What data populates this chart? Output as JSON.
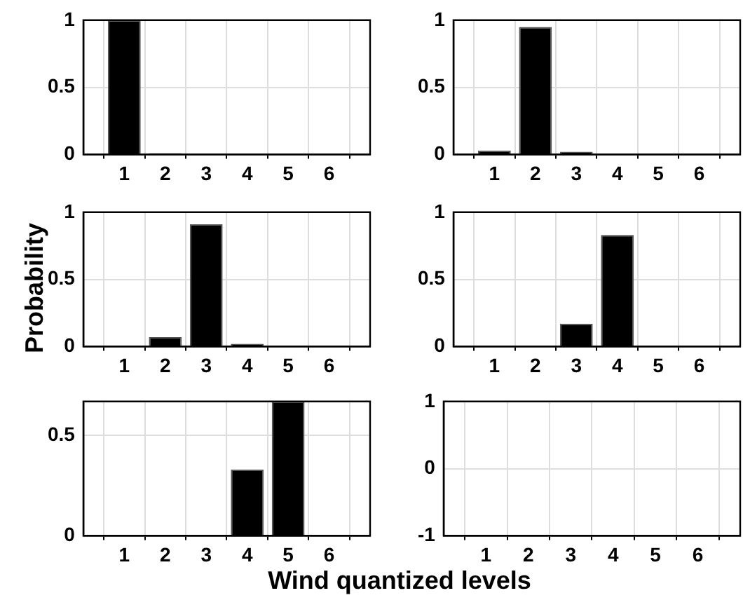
{
  "chart_data": [
    {
      "type": "bar",
      "x": [
        1,
        2,
        3,
        4,
        5,
        6
      ],
      "values": [
        1,
        0.01,
        0,
        0,
        0,
        0
      ],
      "color": "#000000",
      "xlim": [
        0,
        7
      ],
      "xticks": [
        1,
        2,
        3,
        4,
        5,
        6
      ],
      "ylim": [
        0,
        1
      ],
      "yticks": [
        0,
        0.5,
        1
      ],
      "grid": true
    },
    {
      "type": "bar",
      "x": [
        1,
        2,
        3,
        4,
        5,
        6
      ],
      "values": [
        0.03,
        0.95,
        0.02,
        0,
        0,
        0
      ],
      "color": "#000000",
      "xlim": [
        0,
        7
      ],
      "xticks": [
        1,
        2,
        3,
        4,
        5,
        6
      ],
      "ylim": [
        0,
        1
      ],
      "yticks": [
        0,
        0.5,
        1
      ],
      "grid": true
    },
    {
      "type": "bar",
      "ylabel": "Probability",
      "x": [
        1,
        2,
        3,
        4,
        5,
        6
      ],
      "values": [
        0,
        0.07,
        0.91,
        0.02,
        0,
        0
      ],
      "color": "#000000",
      "xlim": [
        0,
        7
      ],
      "xticks": [
        1,
        2,
        3,
        4,
        5,
        6
      ],
      "ylim": [
        0,
        1
      ],
      "yticks": [
        0,
        0.5,
        1
      ],
      "grid": true
    },
    {
      "type": "bar",
      "x": [
        1,
        2,
        3,
        4,
        5,
        6
      ],
      "values": [
        0,
        0,
        0.17,
        0.83,
        0,
        0
      ],
      "color": "#000000",
      "xlim": [
        0,
        7
      ],
      "xticks": [
        1,
        2,
        3,
        4,
        5,
        6
      ],
      "ylim": [
        0,
        1
      ],
      "yticks": [
        0,
        0.5,
        1
      ],
      "grid": true
    },
    {
      "type": "bar",
      "x": [
        1,
        2,
        3,
        4,
        5,
        6
      ],
      "values": [
        0,
        0,
        0,
        0.33,
        0.67,
        0
      ],
      "color": "#000000",
      "xlim": [
        0,
        7
      ],
      "xticks": [
        1,
        2,
        3,
        4,
        5,
        6
      ],
      "ylim": [
        0,
        0.67
      ],
      "yticks": [
        0,
        0.5
      ],
      "grid": true
    },
    {
      "type": "bar",
      "xlabel": "Wind quantized levels",
      "x": [
        1,
        2,
        3,
        4,
        5,
        6
      ],
      "values": [
        0,
        0,
        0,
        0,
        0,
        0
      ],
      "color": "#000000",
      "xlim": [
        0,
        7
      ],
      "xticks": [
        1,
        2,
        3,
        4,
        5,
        6
      ],
      "ylim": [
        -1,
        1
      ],
      "yticks": [
        -1,
        0,
        1
      ],
      "grid": true
    }
  ]
}
